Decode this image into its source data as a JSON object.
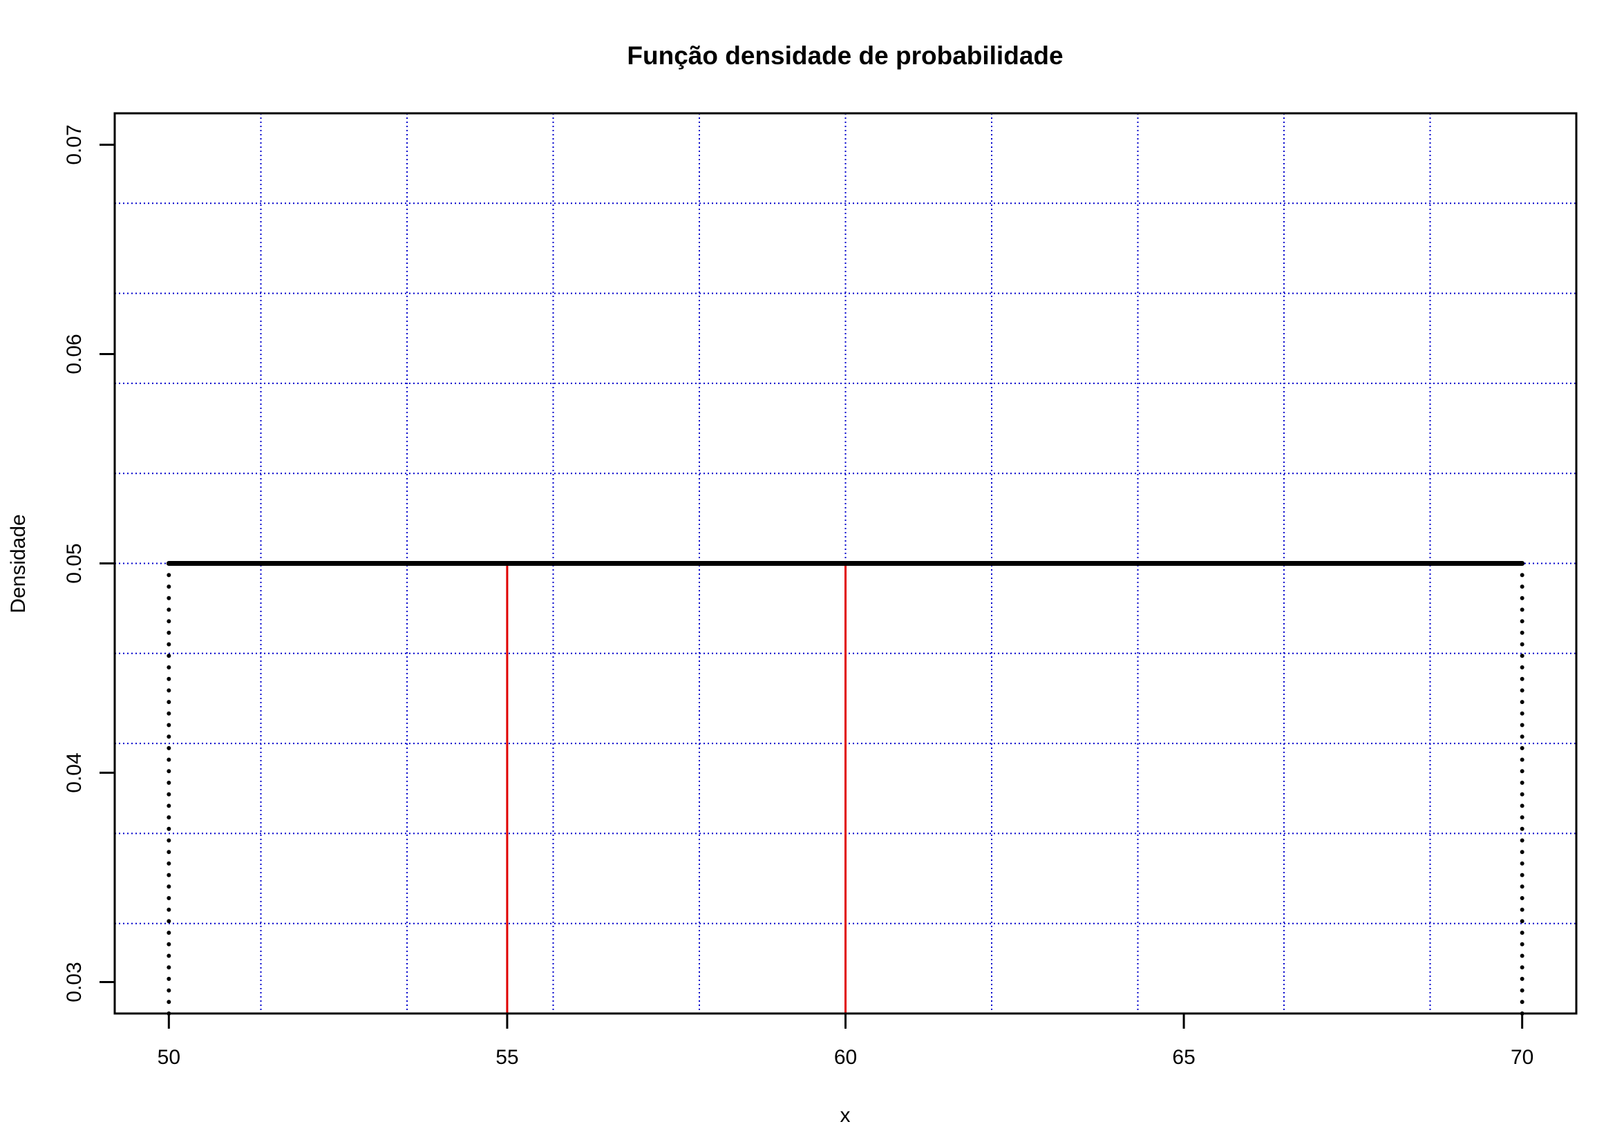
{
  "chart_data": {
    "type": "line",
    "title": "Função densidade de probabilidade",
    "xlabel": "x",
    "ylabel": "Densidade",
    "xlim": [
      49.2,
      70.8
    ],
    "ylim": [
      0.0285,
      0.0715
    ],
    "x_ticks": [
      50,
      55,
      60,
      65,
      70
    ],
    "x_tick_labels": [
      "50",
      "55",
      "60",
      "65",
      "70"
    ],
    "y_ticks": [
      0.03,
      0.04,
      0.05,
      0.06,
      0.07
    ],
    "y_tick_labels": [
      "0.03",
      "0.04",
      "0.05",
      "0.06",
      "0.07"
    ],
    "series": [
      {
        "x": [
          50,
          70
        ],
        "y": [
          0.05,
          0.05
        ],
        "style": "thick solid",
        "color": "#000000"
      }
    ],
    "vertical_dotted_lines": [
      {
        "x": 50,
        "y_from": 0.0285,
        "y_to": 0.05,
        "color": "#000000"
      },
      {
        "x": 70,
        "y_from": 0.0285,
        "y_to": 0.05,
        "color": "#000000"
      }
    ],
    "vertical_reference_lines": [
      {
        "x": 55,
        "y_from": 0.0285,
        "y_to": 0.05,
        "color": "#e00000"
      },
      {
        "x": 60,
        "y_from": 0.0285,
        "y_to": 0.05,
        "color": "#e00000"
      }
    ],
    "grid": {
      "on": true,
      "style": "dotted",
      "color": "#0000cc",
      "x_lines": [
        51.36,
        53.52,
        55.68,
        57.84,
        60.0,
        62.16,
        64.32,
        66.48,
        68.64
      ],
      "y_lines": [
        0.0328,
        0.0371,
        0.0414,
        0.0457,
        0.05,
        0.0543,
        0.0586,
        0.0629,
        0.0672
      ]
    }
  }
}
